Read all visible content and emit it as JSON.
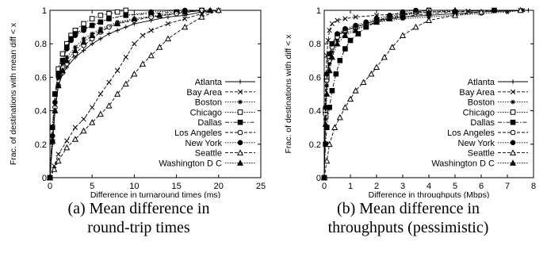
{
  "chart_data": [
    {
      "type": "line",
      "title": "",
      "caption_lines": [
        "(a) Mean difference in",
        "round-trip times"
      ],
      "xlabel": "Difference in turnaround times (ms)",
      "ylabel": "Frac. of destinations with mean diff < x",
      "xlim": [
        0,
        25
      ],
      "ylim": [
        0,
        1
      ],
      "xticks": [
        "0",
        "5",
        "10",
        "15",
        "20",
        "25"
      ],
      "yticks": [
        "0",
        "0.2",
        "0.4",
        "0.6",
        "0.8",
        "1"
      ],
      "grid": false,
      "legend_position": "bottom-right",
      "series": [
        {
          "name": "Atlanta",
          "marker": "plus",
          "dash": "solid",
          "x": [
            0,
            0.3,
            0.6,
            1,
            1.5,
            2,
            3,
            4,
            5,
            6,
            7,
            8,
            9,
            10,
            12,
            14,
            16,
            18,
            20
          ],
          "y": [
            0,
            0.2,
            0.4,
            0.55,
            0.62,
            0.66,
            0.72,
            0.76,
            0.8,
            0.83,
            0.86,
            0.88,
            0.9,
            0.92,
            0.94,
            0.96,
            0.97,
            0.99,
            1
          ]
        },
        {
          "name": "Bay Area",
          "marker": "x",
          "dash": "dashed",
          "x": [
            0,
            0.5,
            1,
            2,
            3,
            4,
            5,
            6,
            7,
            8,
            9,
            10,
            11,
            12,
            14,
            16,
            18,
            20
          ],
          "y": [
            0,
            0.07,
            0.14,
            0.22,
            0.3,
            0.35,
            0.42,
            0.5,
            0.57,
            0.64,
            0.72,
            0.8,
            0.85,
            0.88,
            0.92,
            0.95,
            0.98,
            1
          ]
        },
        {
          "name": "Boston",
          "marker": "asterisk",
          "dash": "dotted",
          "x": [
            0,
            0.3,
            0.6,
            1,
            1.5,
            2,
            3,
            4,
            5,
            6,
            8,
            10,
            13,
            16,
            19
          ],
          "y": [
            0,
            0.25,
            0.45,
            0.6,
            0.68,
            0.72,
            0.78,
            0.83,
            0.86,
            0.89,
            0.93,
            0.95,
            0.97,
            0.99,
            1
          ]
        },
        {
          "name": "Chicago",
          "marker": "square-open",
          "dash": "dotted",
          "x": [
            0,
            0.3,
            0.6,
            1,
            1.5,
            2,
            2.5,
            3,
            4,
            5,
            6,
            7,
            8,
            9
          ],
          "y": [
            0,
            0.3,
            0.5,
            0.65,
            0.74,
            0.8,
            0.85,
            0.88,
            0.92,
            0.95,
            0.97,
            0.98,
            0.99,
            1
          ]
        },
        {
          "name": "Dallas",
          "marker": "square-filled",
          "dash": "dashdot",
          "x": [
            0,
            0.3,
            0.6,
            1,
            1.5,
            2,
            2.5,
            3,
            4,
            5,
            6,
            7,
            9,
            12,
            15,
            18
          ],
          "y": [
            0,
            0.3,
            0.5,
            0.62,
            0.7,
            0.78,
            0.83,
            0.86,
            0.89,
            0.91,
            0.93,
            0.95,
            0.97,
            0.98,
            0.99,
            1
          ]
        },
        {
          "name": "Los Angeles",
          "marker": "circle-open",
          "dash": "dashed",
          "x": [
            0,
            0.3,
            0.6,
            1,
            1.5,
            2,
            3,
            4,
            5,
            6,
            7,
            8,
            10,
            12,
            15,
            18
          ],
          "y": [
            0,
            0.22,
            0.42,
            0.55,
            0.63,
            0.68,
            0.74,
            0.79,
            0.83,
            0.87,
            0.9,
            0.92,
            0.94,
            0.96,
            0.98,
            1
          ]
        },
        {
          "name": "New York",
          "marker": "circle-filled",
          "dash": "dotted",
          "x": [
            0,
            0.3,
            0.6,
            1,
            1.5,
            2,
            2.5,
            3,
            4,
            5,
            6,
            7,
            9,
            12,
            16
          ],
          "y": [
            0,
            0.25,
            0.45,
            0.6,
            0.7,
            0.77,
            0.82,
            0.85,
            0.88,
            0.91,
            0.93,
            0.95,
            0.97,
            0.99,
            1
          ]
        },
        {
          "name": "Seattle",
          "marker": "triangle-open",
          "dash": "dashed",
          "x": [
            0,
            0.5,
            1,
            2,
            3,
            4,
            5,
            6,
            7,
            8,
            9,
            10,
            11,
            12,
            13,
            14,
            16,
            18,
            20
          ],
          "y": [
            0,
            0.05,
            0.1,
            0.18,
            0.23,
            0.28,
            0.33,
            0.38,
            0.43,
            0.5,
            0.56,
            0.62,
            0.68,
            0.73,
            0.78,
            0.83,
            0.9,
            0.96,
            1
          ]
        },
        {
          "name": "Washington D C",
          "marker": "triangle-filled",
          "dash": "dotted",
          "x": [
            0,
            0.3,
            0.6,
            1,
            1.5,
            2,
            3,
            4,
            5,
            6,
            8,
            10,
            13,
            16,
            19
          ],
          "y": [
            0,
            0.22,
            0.4,
            0.55,
            0.64,
            0.7,
            0.76,
            0.81,
            0.85,
            0.88,
            0.92,
            0.95,
            0.97,
            0.99,
            1
          ]
        }
      ]
    },
    {
      "type": "line",
      "title": "",
      "caption_lines": [
        "(b) Mean difference in",
        "throughputs (pessimistic)"
      ],
      "xlabel": "Difference in throughputs (Mbps)",
      "ylabel": "Frac. of destinations with diff < x",
      "xlim": [
        0,
        8
      ],
      "ylim": [
        0,
        1
      ],
      "xticks": [
        "0",
        "1",
        "2",
        "3",
        "4",
        "5",
        "6",
        "7",
        "8"
      ],
      "yticks": [
        "0",
        "0.2",
        "0.4",
        "0.6",
        "0.8",
        "1"
      ],
      "grid": false,
      "legend_position": "bottom-right",
      "series": [
        {
          "name": "Atlanta",
          "marker": "plus",
          "dash": "solid",
          "x": [
            0,
            0.05,
            0.1,
            0.2,
            0.3,
            0.5,
            0.8,
            1.2,
            1.6,
            2,
            2.5,
            3,
            4,
            5,
            6,
            7.8
          ],
          "y": [
            0,
            0.4,
            0.6,
            0.73,
            0.8,
            0.85,
            0.88,
            0.9,
            0.92,
            0.94,
            0.95,
            0.96,
            0.97,
            0.98,
            0.99,
            1
          ]
        },
        {
          "name": "Bay Area",
          "marker": "x",
          "dash": "dashed",
          "x": [
            0,
            0.03,
            0.06,
            0.1,
            0.15,
            0.2,
            0.3,
            0.5,
            0.8,
            1.2,
            2,
            3,
            4,
            5.5,
            7.5
          ],
          "y": [
            0,
            0.4,
            0.6,
            0.73,
            0.82,
            0.88,
            0.92,
            0.94,
            0.95,
            0.96,
            0.97,
            0.98,
            0.99,
            0.995,
            1
          ]
        },
        {
          "name": "Boston",
          "marker": "asterisk",
          "dash": "dotted",
          "x": [
            0,
            0.05,
            0.1,
            0.2,
            0.3,
            0.5,
            0.8,
            1.2,
            1.6,
            2,
            3,
            4,
            5,
            6,
            7,
            7.6
          ],
          "y": [
            0,
            0.35,
            0.55,
            0.68,
            0.75,
            0.82,
            0.86,
            0.89,
            0.91,
            0.93,
            0.95,
            0.96,
            0.97,
            0.98,
            0.99,
            1
          ]
        },
        {
          "name": "Chicago",
          "marker": "square-open",
          "dash": "dotted",
          "x": [
            0,
            0.05,
            0.1,
            0.2,
            0.3,
            0.5,
            0.8,
            1.2,
            1.6,
            2,
            2.5,
            3,
            3.5,
            4
          ],
          "y": [
            0,
            0.4,
            0.6,
            0.72,
            0.8,
            0.85,
            0.88,
            0.9,
            0.92,
            0.94,
            0.96,
            0.98,
            0.99,
            1
          ]
        },
        {
          "name": "Dallas",
          "marker": "square-filled",
          "dash": "dashdot",
          "x": [
            0,
            0.05,
            0.1,
            0.2,
            0.3,
            0.45,
            0.6,
            0.8,
            1,
            1.3,
            1.6,
            2,
            3,
            4,
            5,
            6.5
          ],
          "y": [
            0,
            0.2,
            0.3,
            0.42,
            0.52,
            0.62,
            0.7,
            0.77,
            0.82,
            0.86,
            0.9,
            0.93,
            0.96,
            0.98,
            0.99,
            1
          ]
        },
        {
          "name": "Los Angeles",
          "marker": "circle-open",
          "dash": "dashed",
          "x": [
            0,
            0.05,
            0.1,
            0.2,
            0.3,
            0.5,
            0.8,
            1.2,
            1.6,
            2,
            2.5,
            3,
            3.5,
            4
          ],
          "y": [
            0,
            0.38,
            0.58,
            0.7,
            0.78,
            0.84,
            0.88,
            0.9,
            0.92,
            0.94,
            0.96,
            0.97,
            0.99,
            1
          ]
        },
        {
          "name": "New York",
          "marker": "circle-filled",
          "dash": "dotted",
          "x": [
            0,
            0.05,
            0.1,
            0.2,
            0.3,
            0.5,
            0.8,
            1.2,
            1.6,
            2,
            2.5,
            3,
            3.5
          ],
          "y": [
            0,
            0.42,
            0.62,
            0.74,
            0.8,
            0.86,
            0.89,
            0.91,
            0.93,
            0.95,
            0.97,
            0.99,
            1
          ]
        },
        {
          "name": "Seattle",
          "marker": "triangle-open",
          "dash": "dashed",
          "x": [
            0,
            0.1,
            0.2,
            0.4,
            0.6,
            0.8,
            1,
            1.2,
            1.5,
            1.8,
            2,
            2.3,
            2.6,
            3,
            3.5,
            4,
            5,
            6,
            7.5
          ],
          "y": [
            0,
            0.1,
            0.2,
            0.3,
            0.36,
            0.42,
            0.47,
            0.52,
            0.57,
            0.62,
            0.66,
            0.72,
            0.78,
            0.85,
            0.9,
            0.94,
            0.97,
            0.99,
            1
          ]
        },
        {
          "name": "Washington D C",
          "marker": "triangle-filled",
          "dash": "dotted",
          "x": [
            0,
            0.05,
            0.1,
            0.2,
            0.3,
            0.5,
            0.8,
            1.2,
            1.6,
            2,
            2.5,
            3,
            4,
            5
          ],
          "y": [
            0,
            0.32,
            0.5,
            0.64,
            0.72,
            0.8,
            0.85,
            0.88,
            0.91,
            0.93,
            0.95,
            0.97,
            0.99,
            1
          ]
        }
      ]
    }
  ]
}
